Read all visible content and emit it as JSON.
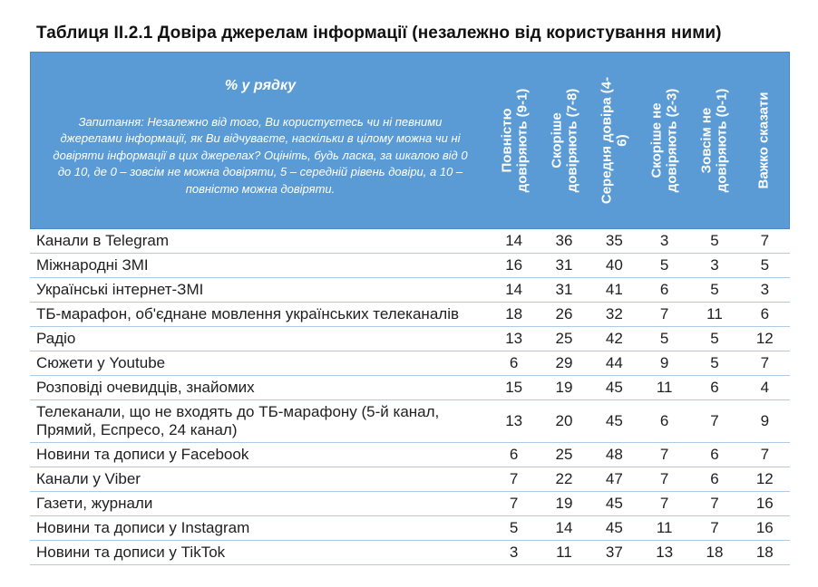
{
  "title": "Таблиця II.2.1 Довіра джерелам інформації (незалежно від користування ними)",
  "chart_data": {
    "type": "table",
    "title": "Таблиця II.2.1 Довіра джерелам інформації (незалежно від користування ними)",
    "corner_label": "% у рядку",
    "question": "Запитання: Незалежно від того, Ви користуєтесь чи ні певними джерелами інформації, як Ви відчуваєте, наскільки в цілому можна чи ні довіряти інформації в цих джерелах? Оцініть, будь ласка, за шкалою від 0 до 10, де 0 – зовсім не можна довіряти, 5 – середній рівень довіри, а 10 – повністю можна довіряти.",
    "columns": [
      "Повністю довіряють (9-1)",
      "Скоріше довіряють (7-8)",
      "Середня довіра (4-6)",
      "Скоріше не довіряють (2-3)",
      "Зовсім не довіряють (0-1)",
      "Важко сказати"
    ],
    "column_display": [
      "Повністю\nдовіряють (9-1)",
      "Скоріше\nдовіряють (7-8)",
      "Середня довіра (4-\n6)",
      "Скоріше не\nдовіряють (2-3)",
      "Зовсім не\nдовіряють (0-1)",
      "Важко сказати"
    ],
    "rows": [
      {
        "label": "Канали в Telegram",
        "values": [
          14,
          36,
          35,
          3,
          5,
          7
        ]
      },
      {
        "label": "Міжнародні ЗМІ",
        "values": [
          16,
          31,
          40,
          5,
          3,
          5
        ]
      },
      {
        "label": "Українські інтернет-ЗМІ",
        "values": [
          14,
          31,
          41,
          6,
          5,
          3
        ]
      },
      {
        "label": "ТБ-марафон, об'єднане мовлення українських телеканалів",
        "values": [
          18,
          26,
          32,
          7,
          11,
          6
        ]
      },
      {
        "label": "Радіо",
        "values": [
          13,
          25,
          42,
          5,
          5,
          12
        ]
      },
      {
        "label": "Сюжети у Youtube",
        "values": [
          6,
          29,
          44,
          9,
          5,
          7
        ]
      },
      {
        "label": "Розповіді очевидців, знайомих",
        "values": [
          15,
          19,
          45,
          11,
          6,
          4
        ]
      },
      {
        "label": "Телеканали, що не входять до ТБ-марафону (5-й канал, Прямий, Еспресо, 24 канал)",
        "values": [
          13,
          20,
          45,
          6,
          7,
          9
        ]
      },
      {
        "label": "Новини та дописи у Facebook",
        "values": [
          6,
          25,
          48,
          7,
          6,
          7
        ]
      },
      {
        "label": "Канали у Viber",
        "values": [
          7,
          22,
          47,
          7,
          6,
          12
        ]
      },
      {
        "label": "Газети, журнали",
        "values": [
          7,
          19,
          45,
          7,
          7,
          16
        ]
      },
      {
        "label": "Новини та дописи у Instagram",
        "values": [
          5,
          14,
          45,
          11,
          7,
          16
        ]
      },
      {
        "label": "Новини та дописи у TikTok",
        "values": [
          3,
          11,
          37,
          13,
          18,
          18
        ]
      }
    ]
  },
  "colors": {
    "header_bg": "#5b9bd5",
    "header_border": "#4d87c6",
    "header_text": "#ffffff",
    "row_divider": "#aecbe5",
    "body_text": "#1f1f1f",
    "title_text": "#111111"
  }
}
